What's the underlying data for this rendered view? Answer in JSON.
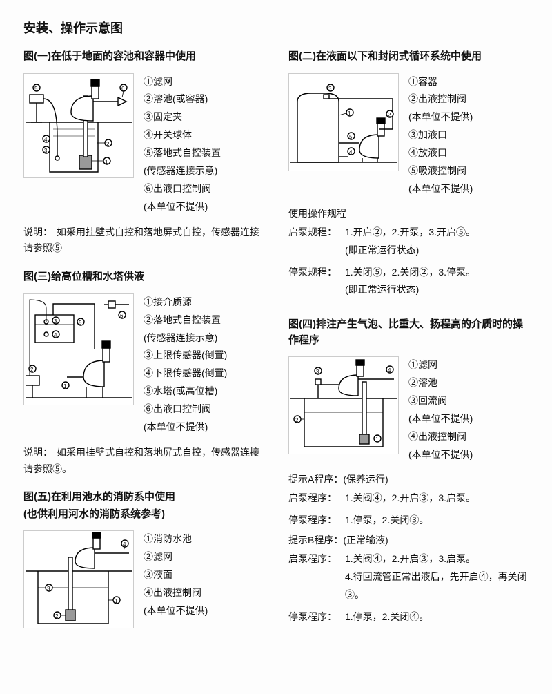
{
  "page_title": "安装、操作示意图",
  "left": {
    "fig1": {
      "title": "图(一)在低于地面的容池和容器中使用",
      "legend": [
        {
          "n": "①",
          "t": "滤网"
        },
        {
          "n": "②",
          "t": "溶池(或容器)"
        },
        {
          "n": "③",
          "t": "固定夹"
        },
        {
          "n": "④",
          "t": "开关球体"
        },
        {
          "n": "⑤",
          "t": "落地式自控装置"
        },
        {
          "n": "",
          "t": "(传感器连接示意)"
        },
        {
          "n": "⑥",
          "t": "出液口控制阀"
        },
        {
          "n": "",
          "t": "(本单位不提供)"
        }
      ],
      "explain_lead": "说明：",
      "explain": "如采用挂壁式自控和落地屏式自控，传感器连接请参照⑤"
    },
    "fig3": {
      "title": "图(三)给高位槽和水塔供液",
      "legend": [
        {
          "n": "①",
          "t": "接介质源"
        },
        {
          "n": "②",
          "t": "落地式自控装置"
        },
        {
          "n": "",
          "t": "(传感器连接示意)"
        },
        {
          "n": "③",
          "t": "上限传感器(倒置)"
        },
        {
          "n": "④",
          "t": "下限传感器(倒置)"
        },
        {
          "n": "⑤",
          "t": "水塔(或高位槽)"
        },
        {
          "n": "⑥",
          "t": "出液口控制阀"
        },
        {
          "n": "",
          "t": "(本单位不提供)"
        }
      ],
      "explain_lead": "说明：",
      "explain": "如采用挂壁式自控和落地屏式自控，传感器连接请参照⑤。"
    },
    "fig5": {
      "title1": "图(五)在利用池水的消防系中使用",
      "title2": "(也供利用河水的消防系统参考)",
      "legend": [
        {
          "n": "①",
          "t": "消防水池"
        },
        {
          "n": "②",
          "t": "滤网"
        },
        {
          "n": "③",
          "t": "液面"
        },
        {
          "n": "④",
          "t": "出液控制阀"
        },
        {
          "n": "",
          "t": "(本单位不提供)"
        }
      ]
    }
  },
  "right": {
    "fig2": {
      "title": "图(二)在液面以下和封闭式循环系统中使用",
      "legend": [
        {
          "n": "①",
          "t": "容器"
        },
        {
          "n": "②",
          "t": "出液控制阀"
        },
        {
          "n": "",
          "t": "(本单位不提供)"
        },
        {
          "n": "③",
          "t": "加液口"
        },
        {
          "n": "④",
          "t": "放液口"
        },
        {
          "n": "⑤",
          "t": "吸液控制阀"
        },
        {
          "n": "",
          "t": "(本单位不提供)"
        }
      ],
      "ops_head": "使用操作规程",
      "start_label": "启泵规程：",
      "start": "1.开启②，2.开泵，3.开启⑤。",
      "start_sub": "(即正常运行状态)",
      "stop_label": "停泵规程：",
      "stop": "1.关闭⑤，2.关闭②，3.停泵。",
      "stop_sub": "(即正常运行状态)"
    },
    "fig4": {
      "title": "图(四)排注产生气泡、比重大、扬程高的介质时的操作程序",
      "legend": [
        {
          "n": "①",
          "t": "滤网"
        },
        {
          "n": "②",
          "t": "溶池"
        },
        {
          "n": "③",
          "t": "回流阀"
        },
        {
          "n": "",
          "t": "(本单位不提供)"
        },
        {
          "n": "④",
          "t": "出液控制阀"
        },
        {
          "n": "",
          "t": "(本单位不提供)"
        }
      ],
      "hintA_head": "提示A程序：(保养运行)",
      "hintA_start_label": "启泵程序：",
      "hintA_start": "1.关阀④，2.开启③，3.启泵。",
      "hintA_stop_label": "停泵程序：",
      "hintA_stop": "1.停泵，2.关闭③。",
      "hintB_head": "提示B程序：(正常输液)",
      "hintB_start_label": "启泵程序：",
      "hintB_start": "1.关阀④，2.开启③，3.启泵。",
      "hintB_start2": "4.待回流管正常出液后，先开启④，再关闭③。",
      "hintB_stop_label": "停泵程序：",
      "hintB_stop": "1.停泵，2.关闭④。"
    }
  },
  "style": {
    "text_color": "#111111",
    "background": "#fdfdfd",
    "stroke": "#000000",
    "stroke_width": 1.4,
    "title_fontsize": 18,
    "section_title_fontsize": 15,
    "body_fontsize": 14
  }
}
